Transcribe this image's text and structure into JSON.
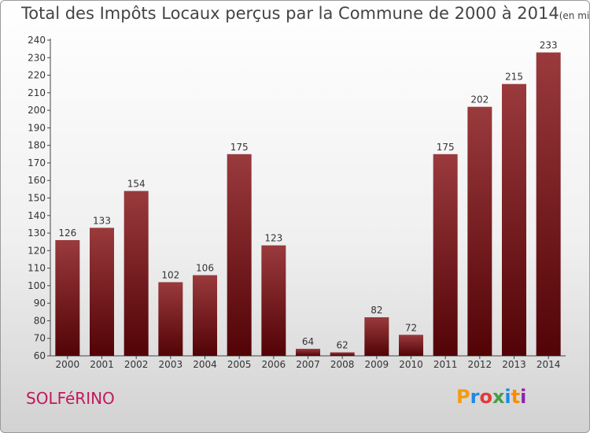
{
  "title": "Total des Impôts Locaux perçus par la Commune de 2000 à 2014",
  "unit_note": "(en milliers d'€)",
  "commune_name": "SOLFéRINO",
  "brand": {
    "text": "Proxiti",
    "letter_colors": [
      "#f39c12",
      "#1e88e5",
      "#e53935",
      "#43a047",
      "#1e88e5",
      "#fb8c00",
      "#8e24aa"
    ]
  },
  "colors": {
    "bar_top": "#9a3a3d",
    "bar_bottom": "#520306",
    "title": "#444444",
    "commune": "#c2185b"
  },
  "chart_data": {
    "type": "bar",
    "title": "Total des Impôts Locaux perçus par la Commune de 2000 à 2014",
    "xlabel": "",
    "ylabel": "",
    "categories": [
      "2000",
      "2001",
      "2002",
      "2003",
      "2004",
      "2005",
      "2006",
      "2007",
      "2008",
      "2009",
      "2010",
      "2011",
      "2012",
      "2013",
      "2014"
    ],
    "values": [
      126,
      133,
      154,
      102,
      106,
      175,
      123,
      64,
      62,
      82,
      72,
      175,
      202,
      215,
      233
    ],
    "ylim": [
      60,
      240
    ],
    "yticks": [
      60,
      70,
      80,
      90,
      100,
      110,
      120,
      130,
      140,
      150,
      160,
      170,
      180,
      190,
      200,
      210,
      220,
      230,
      240
    ],
    "grid": false,
    "legend": "none"
  }
}
